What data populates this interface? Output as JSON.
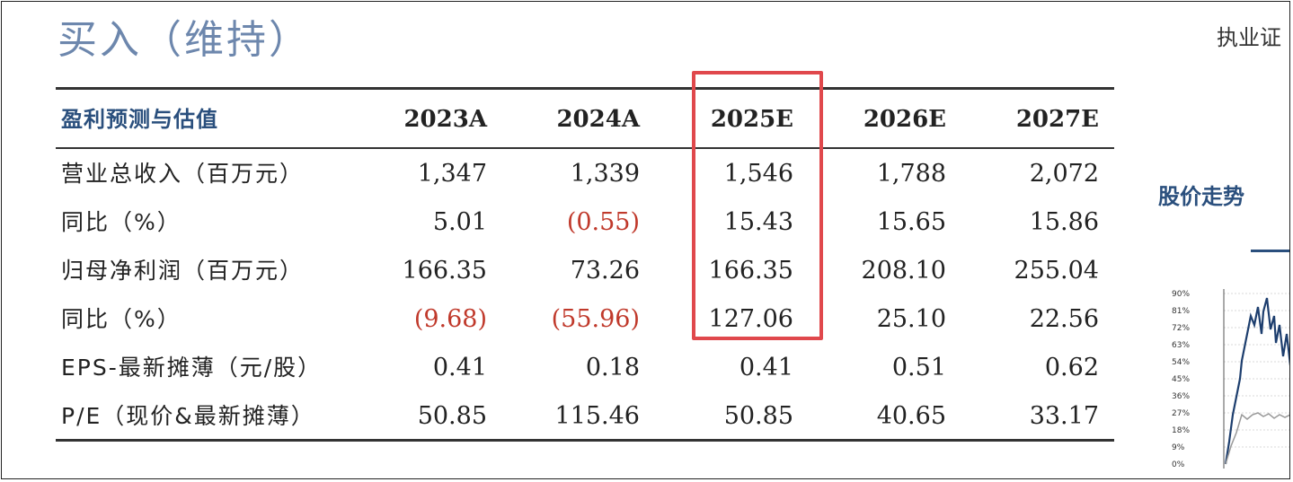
{
  "header": {
    "rating": "买入（维持）",
    "analyst_partial": "执业证"
  },
  "table": {
    "title": "盈利预测与估值",
    "years": [
      "2023A",
      "2024A",
      "2025E",
      "2026E",
      "2027E"
    ],
    "rows": [
      {
        "label": "营业总收入（百万元）",
        "values": [
          "1,347",
          "1,339",
          "1,546",
          "1,788",
          "2,072"
        ]
      },
      {
        "label": "同比（%）",
        "values": [
          "5.01",
          "(0.55)",
          "15.43",
          "15.65",
          "15.86"
        ]
      },
      {
        "label": "归母净利润（百万元）",
        "values": [
          "166.35",
          "73.26",
          "166.35",
          "208.10",
          "255.04"
        ]
      },
      {
        "label": "同比（%）",
        "values": [
          "(9.68)",
          "(55.96)",
          "127.06",
          "25.10",
          "22.56"
        ]
      },
      {
        "label": "EPS-最新摊薄（元/股）",
        "values": [
          "0.41",
          "0.18",
          "0.41",
          "0.51",
          "0.62"
        ]
      },
      {
        "label": "P/E（现价&最新摊薄）",
        "values": [
          "50.85",
          "115.46",
          "50.85",
          "40.65",
          "33.17"
        ]
      }
    ],
    "highlighted_column": "2025E"
  },
  "side_chart": {
    "title": "股价走势",
    "y_ticks": [
      "90%",
      "81%",
      "72%",
      "63%",
      "54%",
      "45%",
      "36%",
      "27%",
      "18%",
      "9%",
      "0%"
    ]
  },
  "colors": {
    "rating": "#6d87ad",
    "heading": "#2a4f7d",
    "negative": "#c0392b",
    "highlight_box": "#e0484c"
  }
}
